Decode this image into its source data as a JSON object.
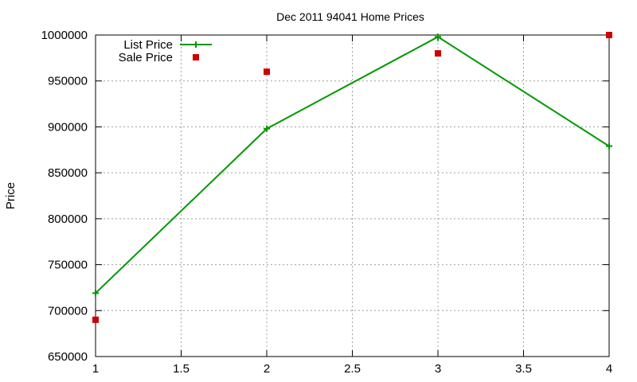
{
  "chart_data": {
    "type": "line",
    "title": "Dec 2011 94041 Home Prices",
    "xlabel": "",
    "ylabel": "Price",
    "xlim": [
      1,
      4
    ],
    "ylim": [
      650000,
      1000000
    ],
    "xticks": [
      "1",
      "1.5",
      "2",
      "2.5",
      "3",
      "3.5",
      "4"
    ],
    "yticks": [
      "650000",
      "700000",
      "750000",
      "800000",
      "850000",
      "900000",
      "950000",
      "1000000"
    ],
    "grid": true,
    "legend_position": "top-left",
    "series": [
      {
        "name": "List Price",
        "style": "line-with-plus-markers",
        "color": "#009900",
        "points": [
          [
            1,
            719000
          ],
          [
            2,
            898000
          ],
          [
            3,
            998000
          ],
          [
            4,
            879000
          ]
        ]
      },
      {
        "name": "Sale Price",
        "style": "square-points",
        "color": "#cc0000",
        "points": [
          [
            1,
            690000
          ],
          [
            2,
            960000
          ],
          [
            3,
            980000
          ],
          [
            4,
            1000000
          ]
        ]
      }
    ]
  }
}
